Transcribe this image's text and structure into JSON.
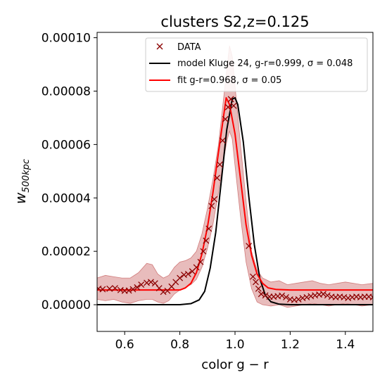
{
  "chart_data": {
    "type": "line",
    "title": "clusters S2,z=0.125",
    "xlabel": "color g − r",
    "ylabel": "w",
    "ylabel_sub": "500kpc",
    "xlim": [
      0.5,
      1.5
    ],
    "ylim": [
      -1e-05,
      0.000102
    ],
    "x_ticks": [
      0.6,
      0.8,
      1.0,
      1.2,
      1.4
    ],
    "x_tick_labels": [
      "0.6",
      "0.8",
      "1.0",
      "1.2",
      "1.4"
    ],
    "y_ticks": [
      0.0,
      2e-05,
      4e-05,
      6e-05,
      8e-05,
      0.0001
    ],
    "y_tick_labels": [
      "0.00000",
      "0.00002",
      "0.00004",
      "0.00006",
      "0.00008",
      "0.00010"
    ],
    "grid": false,
    "legend_position": "top-right",
    "series": [
      {
        "name": "DATA",
        "kind": "markers",
        "marker": "x",
        "color": "#8b0000",
        "points": [
          [
            0.505,
            6e-06
          ],
          [
            0.52,
            5.8e-06
          ],
          [
            0.545,
            6e-06
          ],
          [
            0.565,
            6.2e-06
          ],
          [
            0.585,
            5.5e-06
          ],
          [
            0.6,
            5.2e-06
          ],
          [
            0.615,
            5.3e-06
          ],
          [
            0.63,
            5.8e-06
          ],
          [
            0.645,
            6.5e-06
          ],
          [
            0.66,
            7.5e-06
          ],
          [
            0.68,
            8.2e-06
          ],
          [
            0.695,
            8.5e-06
          ],
          [
            0.71,
            8e-06
          ],
          [
            0.725,
            6.2e-06
          ],
          [
            0.74,
            4.8e-06
          ],
          [
            0.755,
            5.2e-06
          ],
          [
            0.77,
            6.8e-06
          ],
          [
            0.785,
            8.5e-06
          ],
          [
            0.8,
            1e-05
          ],
          [
            0.815,
            1.12e-05
          ],
          [
            0.83,
            1.15e-05
          ],
          [
            0.845,
            1.25e-05
          ],
          [
            0.86,
            1.4e-05
          ],
          [
            0.875,
            1.6e-05
          ],
          [
            0.885,
            2e-05
          ],
          [
            0.895,
            2.4e-05
          ],
          [
            0.905,
            2.85e-05
          ],
          [
            0.915,
            3.7e-05
          ],
          [
            0.925,
            3.95e-05
          ],
          [
            0.935,
            4.75e-05
          ],
          [
            0.945,
            5.25e-05
          ],
          [
            0.955,
            6.15e-05
          ],
          [
            0.965,
            6.95e-05
          ],
          [
            0.975,
            7.4e-05
          ],
          [
            0.985,
            7.7e-05
          ],
          [
            0.995,
            7.45e-05
          ],
          [
            1.05,
            2.2e-05
          ],
          [
            1.065,
            1.05e-05
          ],
          [
            1.075,
            8.5e-06
          ],
          [
            1.085,
            6e-06
          ],
          [
            1.095,
            4e-06
          ],
          [
            1.11,
            3.5e-06
          ],
          [
            1.125,
            3e-06
          ],
          [
            1.14,
            3e-06
          ],
          [
            1.155,
            3.2e-06
          ],
          [
            1.17,
            3.4e-06
          ],
          [
            1.185,
            2.8e-06
          ],
          [
            1.2,
            2e-06
          ],
          [
            1.215,
            1.8e-06
          ],
          [
            1.23,
            2e-06
          ],
          [
            1.245,
            2.5e-06
          ],
          [
            1.26,
            2.8e-06
          ],
          [
            1.275,
            3.2e-06
          ],
          [
            1.29,
            3.5e-06
          ],
          [
            1.305,
            3.8e-06
          ],
          [
            1.32,
            4e-06
          ],
          [
            1.335,
            3.5e-06
          ],
          [
            1.35,
            3e-06
          ],
          [
            1.365,
            2.8e-06
          ],
          [
            1.38,
            3e-06
          ],
          [
            1.395,
            2.8e-06
          ],
          [
            1.41,
            2.5e-06
          ],
          [
            1.425,
            2.8e-06
          ],
          [
            1.44,
            3e-06
          ],
          [
            1.455,
            2.8e-06
          ],
          [
            1.47,
            3e-06
          ],
          [
            1.485,
            3e-06
          ],
          [
            1.5,
            2.8e-06
          ]
        ]
      },
      {
        "name": "model Kluge 24, g-r=0.999, σ = 0.048",
        "kind": "line",
        "color": "#000000",
        "points": [
          [
            0.5,
            0.0
          ],
          [
            0.8,
            0.0
          ],
          [
            0.84,
            4e-07
          ],
          [
            0.87,
            1.8e-06
          ],
          [
            0.89,
            5e-06
          ],
          [
            0.91,
            1.37e-05
          ],
          [
            0.93,
            2.7e-05
          ],
          [
            0.95,
            4.6e-05
          ],
          [
            0.97,
            6.55e-05
          ],
          [
            0.99,
            7.7e-05
          ],
          [
            1.0,
            7.75e-05
          ],
          [
            1.01,
            7.5e-05
          ],
          [
            1.03,
            6.1e-05
          ],
          [
            1.05,
            4.05e-05
          ],
          [
            1.07,
            2.25e-05
          ],
          [
            1.09,
            9.8e-06
          ],
          [
            1.11,
            3.5e-06
          ],
          [
            1.13,
            1.1e-06
          ],
          [
            1.16,
            2e-07
          ],
          [
            1.2,
            0.0
          ],
          [
            1.5,
            0.0
          ]
        ]
      },
      {
        "name": "fit g-r=0.968, σ = 0.05",
        "kind": "line",
        "color": "#ff0000",
        "points": [
          [
            0.5,
            5.5e-06
          ],
          [
            0.8,
            5.5e-06
          ],
          [
            0.82,
            6.3e-06
          ],
          [
            0.84,
            8e-06
          ],
          [
            0.86,
            1.2e-05
          ],
          [
            0.88,
            1.9e-05
          ],
          [
            0.9,
            2.9e-05
          ],
          [
            0.92,
            4.2e-05
          ],
          [
            0.94,
            5.7e-05
          ],
          [
            0.955,
            6.8e-05
          ],
          [
            0.968,
            7.75e-05
          ],
          [
            0.98,
            7.5e-05
          ],
          [
            1.0,
            6.4e-05
          ],
          [
            1.02,
            4.7e-05
          ],
          [
            1.04,
            3e-05
          ],
          [
            1.06,
            1.85e-05
          ],
          [
            1.08,
            1.15e-05
          ],
          [
            1.1,
            8e-06
          ],
          [
            1.12,
            6.3e-06
          ],
          [
            1.15,
            5.7e-06
          ],
          [
            1.2,
            5.5e-06
          ],
          [
            1.5,
            5.5e-06
          ]
        ]
      },
      {
        "name": "",
        "kind": "band",
        "color": "#b22222",
        "opacity": 0.3,
        "upper": [
          [
            0.5,
            1e-05
          ],
          [
            0.53,
            1.1e-05
          ],
          [
            0.56,
            1.05e-05
          ],
          [
            0.59,
            1e-05
          ],
          [
            0.62,
            1e-05
          ],
          [
            0.65,
            1.2e-05
          ],
          [
            0.68,
            1.55e-05
          ],
          [
            0.7,
            1.5e-05
          ],
          [
            0.72,
            1.15e-05
          ],
          [
            0.74,
            1e-05
          ],
          [
            0.76,
            1.1e-05
          ],
          [
            0.78,
            1.4e-05
          ],
          [
            0.8,
            1.6e-05
          ],
          [
            0.82,
            1.65e-05
          ],
          [
            0.84,
            1.75e-05
          ],
          [
            0.86,
            2e-05
          ],
          [
            0.88,
            2.65e-05
          ],
          [
            0.9,
            3.6e-05
          ],
          [
            0.92,
            4.7e-05
          ],
          [
            0.94,
            6e-05
          ],
          [
            0.955,
            7.4e-05
          ],
          [
            0.97,
            8.8e-05
          ],
          [
            0.98,
            9.7e-05
          ],
          [
            0.99,
            9.3e-05
          ],
          [
            1.0,
            8.2e-05
          ],
          [
            1.02,
            6e-05
          ],
          [
            1.04,
            3.9e-05
          ],
          [
            1.06,
            2e-05
          ],
          [
            1.08,
            1.3e-05
          ],
          [
            1.1,
            1e-05
          ],
          [
            1.13,
            8.5e-06
          ],
          [
            1.16,
            9e-06
          ],
          [
            1.19,
            7.5e-06
          ],
          [
            1.22,
            8e-06
          ],
          [
            1.25,
            8.5e-06
          ],
          [
            1.28,
            9e-06
          ],
          [
            1.31,
            8e-06
          ],
          [
            1.34,
            7.5e-06
          ],
          [
            1.37,
            8e-06
          ],
          [
            1.4,
            8.5e-06
          ],
          [
            1.43,
            8e-06
          ],
          [
            1.46,
            7.5e-06
          ],
          [
            1.5,
            8e-06
          ]
        ],
        "lower": [
          [
            0.5,
            2e-06
          ],
          [
            0.53,
            1.5e-06
          ],
          [
            0.56,
            2e-06
          ],
          [
            0.59,
            1e-06
          ],
          [
            0.62,
            5e-07
          ],
          [
            0.65,
            1.5e-06
          ],
          [
            0.68,
            2e-06
          ],
          [
            0.7,
            2e-06
          ],
          [
            0.72,
            1e-06
          ],
          [
            0.74,
            5e-07
          ],
          [
            0.76,
            1.5e-06
          ],
          [
            0.78,
            4e-06
          ],
          [
            0.8,
            5.5e-06
          ],
          [
            0.82,
            6.5e-06
          ],
          [
            0.84,
            7.5e-06
          ],
          [
            0.86,
            9.5e-06
          ],
          [
            0.88,
            1.4e-05
          ],
          [
            0.9,
            2.1e-05
          ],
          [
            0.92,
            3e-05
          ],
          [
            0.94,
            4.2e-05
          ],
          [
            0.955,
            5.2e-05
          ],
          [
            0.97,
            6.1e-05
          ],
          [
            0.98,
            6.5e-05
          ],
          [
            0.99,
            6.2e-05
          ],
          [
            1.0,
            5.2e-05
          ],
          [
            1.02,
            3.3e-05
          ],
          [
            1.04,
            1.6e-05
          ],
          [
            1.06,
            6e-06
          ],
          [
            1.08,
            1e-06
          ],
          [
            1.1,
            0.0
          ],
          [
            1.13,
            -5e-07
          ],
          [
            1.16,
            0.0
          ],
          [
            1.19,
            -1e-06
          ],
          [
            1.22,
            -5e-07
          ],
          [
            1.25,
            0.0
          ],
          [
            1.28,
            5e-07
          ],
          [
            1.31,
            0.0
          ],
          [
            1.34,
            -5e-07
          ],
          [
            1.37,
            0.0
          ],
          [
            1.4,
            5e-07
          ],
          [
            1.43,
            0.0
          ],
          [
            1.46,
            -5e-07
          ],
          [
            1.5,
            0.0
          ]
        ]
      }
    ]
  }
}
